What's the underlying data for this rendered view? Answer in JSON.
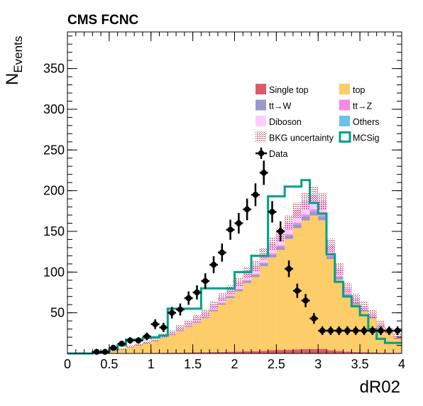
{
  "chart_data": {
    "type": "bar",
    "title": "CMS FCNC",
    "xlabel": "dR02",
    "ylabel_main": "N",
    "ylabel_sub": "Events",
    "xlim": [
      0,
      4
    ],
    "ylim": [
      0,
      395
    ],
    "xticks": [
      "0",
      "0.5",
      "1",
      "1.5",
      "2",
      "2.5",
      "3",
      "3.5",
      "4"
    ],
    "yticks": [
      "50",
      "100",
      "150",
      "200",
      "250",
      "300",
      "350"
    ],
    "bin_edges": [
      0.0,
      0.1,
      0.2,
      0.3,
      0.4,
      0.5,
      0.6,
      0.7,
      0.8,
      0.9,
      1.0,
      1.1,
      1.2,
      1.3,
      1.4,
      1.5,
      1.6,
      1.7,
      1.8,
      1.9,
      2.0,
      2.1,
      2.2,
      2.3,
      2.4,
      2.5,
      2.6,
      2.7,
      2.8,
      2.9,
      3.0,
      3.1,
      3.2,
      3.3,
      3.4,
      3.5,
      3.6,
      3.7,
      3.8,
      3.9,
      4.0
    ],
    "stack": [
      {
        "name": "Single top",
        "color": "#de5a6a",
        "values": [
          0,
          0,
          0,
          0,
          0.1,
          0.2,
          0.3,
          0.4,
          0.5,
          0.6,
          0.7,
          0.8,
          0.9,
          1.0,
          1.2,
          1.4,
          1.5,
          1.7,
          1.9,
          2.1,
          2.3,
          2.6,
          2.9,
          3.3,
          4.0,
          4.3,
          4.6,
          5.0,
          5.4,
          5.4,
          5.6,
          4.0,
          3.0,
          2.4,
          1.8,
          1.6,
          1.4,
          1.0,
          0.8,
          0.7
        ]
      },
      {
        "name": "top",
        "color": "#fccd68",
        "values": [
          0,
          0,
          0,
          0.5,
          1.2,
          2.4,
          4.6,
          7.3,
          9.2,
          11.6,
          14.0,
          18.2,
          21.5,
          26.5,
          31.5,
          36.0,
          42.0,
          50.0,
          58.0,
          66.0,
          74.0,
          84.0,
          91.0,
          104.0,
          114.0,
          123.0,
          136.0,
          149.0,
          158.0,
          164.0,
          158.0,
          112.0,
          88.0,
          68.0,
          58.0,
          50.0,
          42.0,
          31.0,
          24.0,
          18.0
        ]
      },
      {
        "name": "tt→W",
        "color": "#9999cc",
        "values": [
          0,
          0,
          0,
          0,
          0,
          0.1,
          0.2,
          0.2,
          0.3,
          0.4,
          0.5,
          0.6,
          0.7,
          0.8,
          1.0,
          1.1,
          1.3,
          1.5,
          1.7,
          1.9,
          2.1,
          2.4,
          2.7,
          3.0,
          3.4,
          3.8,
          4.2,
          4.6,
          5.0,
          5.2,
          5.0,
          3.6,
          2.8,
          2.1,
          1.7,
          1.4,
          1.2,
          0.9,
          0.7,
          0.5
        ]
      },
      {
        "name": "tt→Z",
        "color": "#f789e1",
        "values": [
          0,
          0,
          0,
          0,
          0,
          0,
          0.1,
          0.1,
          0.1,
          0.2,
          0.2,
          0.3,
          0.3,
          0.4,
          0.5,
          0.6,
          0.7,
          0.8,
          0.9,
          1.0,
          1.1,
          1.2,
          1.3,
          1.4,
          1.6,
          1.8,
          2.0,
          2.2,
          2.4,
          2.6,
          2.5,
          1.8,
          1.4,
          1.1,
          0.9,
          0.7,
          0.6,
          0.5,
          0.4,
          0.3
        ]
      },
      {
        "name": "Diboson",
        "color": "#ffccff",
        "values": [
          0,
          0,
          0,
          0,
          0.2,
          0.3,
          0.5,
          0.8,
          1.0,
          1.3,
          1.6,
          2.0,
          2.4,
          2.9,
          3.5,
          4.0,
          4.7,
          5.5,
          6.3,
          7.0,
          7.8,
          8.7,
          9.6,
          10.6,
          11.8,
          12.8,
          13.8,
          15.0,
          16.0,
          17.0,
          15.5,
          11.0,
          8.5,
          6.5,
          5.2,
          4.2,
          3.4,
          2.6,
          2.0,
          1.4
        ]
      },
      {
        "name": "Others",
        "color": "#6cc0e9",
        "values": [
          0,
          0,
          0,
          0,
          0,
          0,
          0,
          0,
          0,
          0,
          0,
          0,
          0.1,
          0.1,
          0.1,
          0.1,
          0.1,
          0.1,
          0.1,
          0.2,
          0.2,
          0.2,
          0.2,
          0.2,
          0.2,
          0.2,
          0.2,
          0.2,
          0.3,
          0.3,
          0.3,
          0.2,
          0.2,
          0.1,
          0.1,
          0.1,
          0.1,
          0.1,
          0.1,
          0.1
        ]
      }
    ],
    "bkg_uncertainty": {
      "name": "BKG uncertainty",
      "color": "#a31a3a",
      "values": [
        0,
        0,
        0,
        0.3,
        0.5,
        0.7,
        1.0,
        1.2,
        1.5,
        1.8,
        2.0,
        2.3,
        2.6,
        3.0,
        3.4,
        3.8,
        4.2,
        4.6,
        5.0,
        5.4,
        5.8,
        6.3,
        6.8,
        7.3,
        7.9,
        8.4,
        8.9,
        9.4,
        9.8,
        10.2,
        9.9,
        8.4,
        7.3,
        6.4,
        5.8,
        5.4,
        4.9,
        4.2,
        3.6,
        3.1
      ]
    },
    "signal": {
      "name": "MCSig",
      "color": "#00a088",
      "values": [
        0,
        0,
        0,
        1,
        2,
        5,
        10,
        17,
        17,
        19,
        20,
        22,
        55,
        55,
        55,
        55,
        80,
        80,
        80,
        80,
        100,
        100,
        120,
        120,
        193,
        193,
        205,
        205,
        213,
        185,
        172,
        122,
        88,
        70,
        58,
        47,
        30,
        18,
        13,
        13
      ]
    },
    "data": {
      "name": "Data",
      "color": "#000000",
      "x": [
        0.35,
        0.45,
        0.55,
        0.65,
        0.75,
        0.85,
        0.95,
        1.05,
        1.15,
        1.25,
        1.35,
        1.45,
        1.55,
        1.65,
        1.75,
        1.85,
        1.95,
        2.05,
        2.15,
        2.25,
        2.35,
        2.45,
        2.55,
        2.65,
        2.75,
        2.85,
        2.95,
        3.05,
        3.15,
        3.25,
        3.35,
        3.45,
        3.55,
        3.65,
        3.75,
        3.85,
        3.95
      ],
      "y": [
        2,
        2,
        7,
        12,
        16,
        16,
        21,
        36,
        32,
        50,
        54,
        68,
        75,
        89,
        109,
        124,
        152,
        160,
        177,
        195,
        222,
        174,
        150,
        104,
        77,
        65,
        43,
        28,
        28,
        28,
        28,
        28,
        28,
        28,
        28,
        28,
        28
      ]
    },
    "legend": {
      "placement": "top-right",
      "entries": [
        {
          "label": "Single top",
          "kind": "fill",
          "color": "#de5a6a"
        },
        {
          "label": "top",
          "kind": "fill",
          "color": "#fccd68"
        },
        {
          "label": "tt→W",
          "kind": "fill",
          "color": "#9999cc"
        },
        {
          "label": "tt→Z",
          "kind": "fill",
          "color": "#f789e1"
        },
        {
          "label": "Diboson",
          "kind": "fill",
          "color": "#ffccff"
        },
        {
          "label": "Others",
          "kind": "fill",
          "color": "#6cc0e9"
        },
        {
          "label": "BKG uncertainty",
          "kind": "hatch",
          "color": "#a31a3a"
        },
        {
          "label": "MCSig",
          "kind": "line",
          "color": "#00a088"
        },
        {
          "label": "Data",
          "kind": "marker",
          "color": "#000000"
        }
      ]
    }
  }
}
